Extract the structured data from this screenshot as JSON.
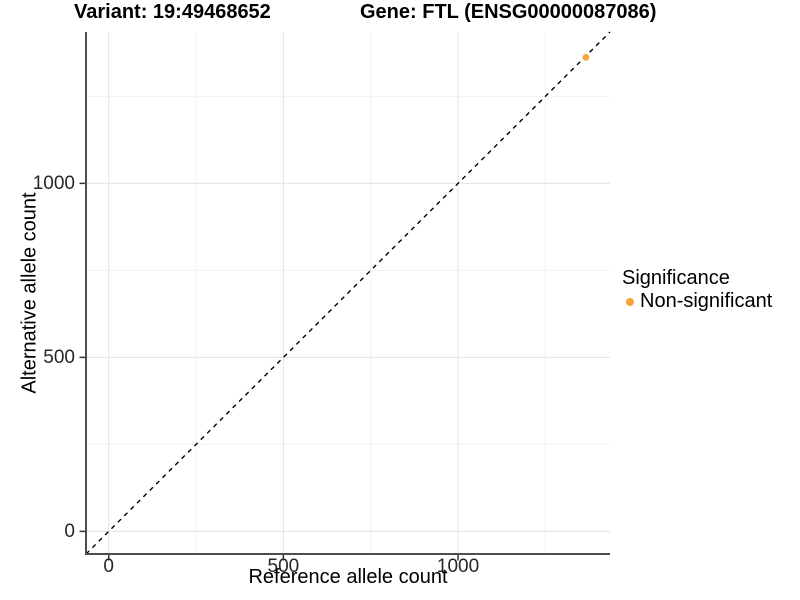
{
  "chart_data": {
    "type": "scatter",
    "titles": {
      "left": "Variant: 19:49468652",
      "right": "Gene: FTL (ENSG00000087086)"
    },
    "xlabel": "Reference allele count",
    "ylabel": "Alternative allele count",
    "xlim": [
      -65,
      1435
    ],
    "ylim": [
      -65,
      1435
    ],
    "x_ticks": [
      0,
      500,
      1000
    ],
    "y_ticks": [
      0,
      500,
      1000
    ],
    "x_minor_ticks": [
      250,
      750,
      1250
    ],
    "y_minor_ticks": [
      250,
      750,
      1250
    ],
    "grid": true,
    "legend": {
      "title": "Significance",
      "position": "right"
    },
    "series": [
      {
        "name": "Non-significant",
        "color": "#F9A33C",
        "points": [
          {
            "x": 1366,
            "y": 1362
          }
        ]
      }
    ],
    "identity_line": {
      "from": -65,
      "to": 1435,
      "style": "dashed",
      "color": "#000000"
    },
    "colors": {
      "axis_line": "#4D4D4D",
      "tick_mark": "#333333",
      "tick_label": "#262626",
      "grid_major": "#E7E7E7",
      "grid_minor": "#F2F2F2",
      "background": "#FFFFFF"
    }
  }
}
